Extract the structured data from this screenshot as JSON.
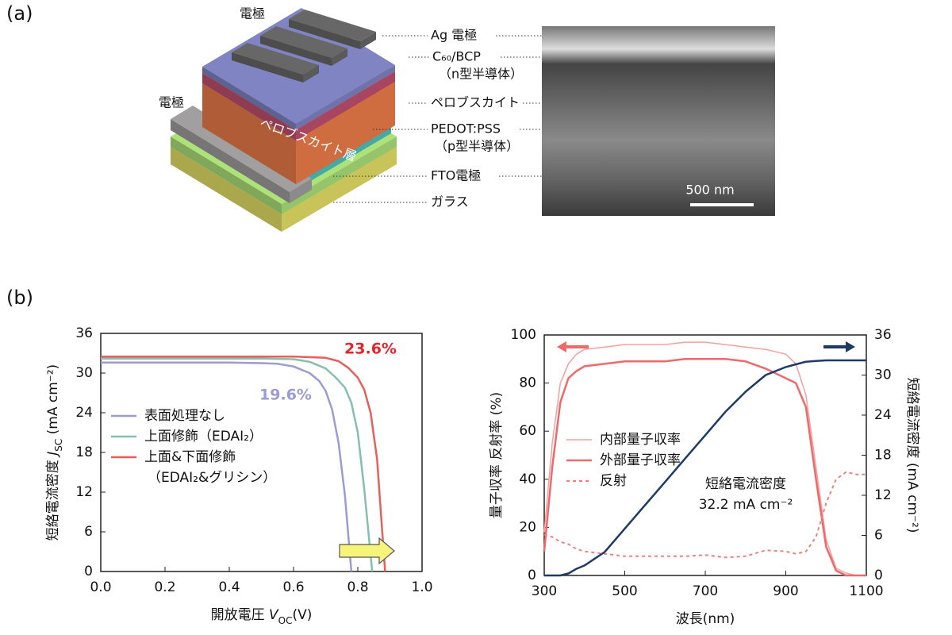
{
  "panel_a": {
    "label": "(a)",
    "electrode_top": "電極",
    "electrode_left": "電極",
    "layer_text": "ペロブスカイト層",
    "layers": [
      "Ag 電極",
      "C₆₀/BCP",
      "（n型半導体）",
      "ペロブスカイト",
      "PEDOT:PSS",
      "（p型半導体）",
      "FTO電極",
      "ガラス"
    ],
    "scale_bar": "500 nm"
  },
  "panel_b": {
    "label": "(b)"
  },
  "chart_data": [
    {
      "type": "line",
      "xlabel": [
        {
          "text": "開放電圧 "
        },
        {
          "text": "V",
          "style": "italic"
        },
        {
          "text": "OC",
          "style": "sub"
        },
        {
          "text": "(V)"
        }
      ],
      "ylabel": [
        {
          "text": "短絡電流密度 "
        },
        {
          "text": "J",
          "style": "italic"
        },
        {
          "text": "SC",
          "style": "sub"
        },
        {
          "text": " (mA cm⁻²)"
        }
      ],
      "xlim": [
        0,
        1
      ],
      "xticks": [
        {
          "value": 0,
          "label": "0.0"
        },
        0.2,
        0.4,
        0.6,
        0.8,
        {
          "value": 1,
          "label": "1.0"
        }
      ],
      "ylim": [
        0,
        36
      ],
      "yticks": [
        0,
        6,
        12,
        18,
        24,
        30,
        36
      ],
      "series": [
        {
          "name": "表面処理なし",
          "color": "#9b9bd6",
          "linewidth": 2.5,
          "x": [
            0,
            0.1,
            0.2,
            0.3,
            0.4,
            0.5,
            0.55,
            0.6,
            0.65,
            0.68,
            0.7,
            0.72,
            0.74,
            0.76,
            0.78
          ],
          "values": [
            31.6,
            31.6,
            31.6,
            31.6,
            31.6,
            31.5,
            31.4,
            31.0,
            30.0,
            28.8,
            27.3,
            24.5,
            19.5,
            11.5,
            0
          ]
        },
        {
          "name": "上面修飾（EDAI₂）",
          "color": "#86bfae",
          "linewidth": 2.5,
          "x": [
            0,
            0.1,
            0.2,
            0.3,
            0.4,
            0.5,
            0.6,
            0.65,
            0.7,
            0.73,
            0.76,
            0.78,
            0.8,
            0.82,
            0.845
          ],
          "values": [
            32.2,
            32.2,
            32.2,
            32.2,
            32.2,
            32.2,
            32.1,
            31.7,
            30.7,
            29.4,
            27.8,
            25.5,
            21,
            12.5,
            0
          ]
        },
        {
          "name": [
            "上面&下面修飾",
            "（EDAI₂&グリシン）"
          ],
          "color": "#e5605a",
          "linewidth": 2.5,
          "x": [
            0,
            0.1,
            0.2,
            0.3,
            0.4,
            0.5,
            0.6,
            0.7,
            0.74,
            0.77,
            0.8,
            0.82,
            0.84,
            0.86,
            0.885
          ],
          "values": [
            32.5,
            32.5,
            32.5,
            32.5,
            32.5,
            32.5,
            32.5,
            32.3,
            31.8,
            30.8,
            29.3,
            27.5,
            24,
            17,
            0
          ]
        }
      ],
      "annotations": [
        {
          "text": "23.6%",
          "color": "#e8232a"
        },
        {
          "text": "19.6%",
          "color": "#9b9bd6"
        }
      ]
    },
    {
      "type": "line",
      "xlabel": [
        {
          "text": "波長(nm)"
        }
      ],
      "ylabel": [
        {
          "text": "量子収率 反射率 (%)"
        }
      ],
      "y2label": [
        {
          "text": "短絡電流密度 (mA cm⁻²)"
        }
      ],
      "xlim": [
        300,
        1100
      ],
      "xticks": [
        300,
        500,
        700,
        900,
        1100
      ],
      "ylim": [
        0,
        100
      ],
      "yticks": [
        0,
        20,
        40,
        60,
        80,
        100
      ],
      "y2lim": [
        0,
        36
      ],
      "y2ticks": [
        0,
        6,
        12,
        18,
        24,
        30,
        36
      ],
      "series": [
        {
          "name": "内部量子収率",
          "color": "#f4a0a0",
          "linewidth": 1.5,
          "x": [
            300,
            320,
            340,
            360,
            380,
            400,
            450,
            500,
            550,
            600,
            650,
            700,
            750,
            800,
            850,
            900,
            925,
            950,
            975,
            1000,
            1025,
            1050,
            1075,
            1100
          ],
          "values": [
            18,
            55,
            80,
            88,
            92,
            94,
            95,
            96,
            96,
            96,
            97,
            97,
            96,
            95,
            94,
            92,
            88,
            75,
            45,
            15,
            3,
            1,
            0,
            0
          ]
        },
        {
          "name": "外部量子収率",
          "color": "#ee6a6a",
          "linewidth": 2.5,
          "x": [
            300,
            320,
            340,
            360,
            380,
            400,
            450,
            500,
            550,
            600,
            650,
            700,
            750,
            800,
            850,
            900,
            925,
            950,
            975,
            1000,
            1025,
            1050,
            1075,
            1100
          ],
          "values": [
            10,
            45,
            72,
            82,
            85,
            87,
            88,
            89,
            89,
            89,
            90,
            90,
            90,
            89,
            86,
            82,
            80,
            70,
            40,
            12,
            2,
            0,
            0,
            0
          ]
        },
        {
          "name": "反射",
          "color": "#f08080",
          "linewidth": 2,
          "dash": true,
          "x": [
            300,
            320,
            340,
            360,
            380,
            400,
            450,
            500,
            550,
            600,
            650,
            700,
            750,
            800,
            850,
            900,
            925,
            950,
            975,
            1000,
            1025,
            1050,
            1075,
            1100
          ],
          "values": [
            17,
            16,
            14,
            13,
            11,
            10,
            9,
            8,
            8,
            8,
            8,
            8.5,
            7.5,
            8,
            10.5,
            10,
            9,
            10,
            16,
            30,
            40,
            43,
            42,
            42
          ]
        },
        {
          "color": "#1f3a66",
          "linewidth": 2.5,
          "axis": "y2",
          "x": [
            300,
            320,
            340,
            360,
            380,
            400,
            450,
            500,
            550,
            600,
            650,
            700,
            750,
            800,
            850,
            900,
            925,
            950,
            975,
            1000,
            1025,
            1050,
            1075,
            1100
          ],
          "values": [
            0,
            0,
            0,
            0.3,
            1,
            1.5,
            3.5,
            7,
            10.5,
            14,
            17.5,
            21,
            24.5,
            27.5,
            30,
            31.2,
            31.6,
            32,
            32.1,
            32.2,
            32.2,
            32.2,
            32.2,
            32.2
          ]
        }
      ],
      "annotations": [
        {
          "text": "短絡電流密度",
          "color": "#111111"
        },
        {
          "text": "32.2 mA cm⁻²",
          "color": "#111111"
        }
      ]
    }
  ]
}
